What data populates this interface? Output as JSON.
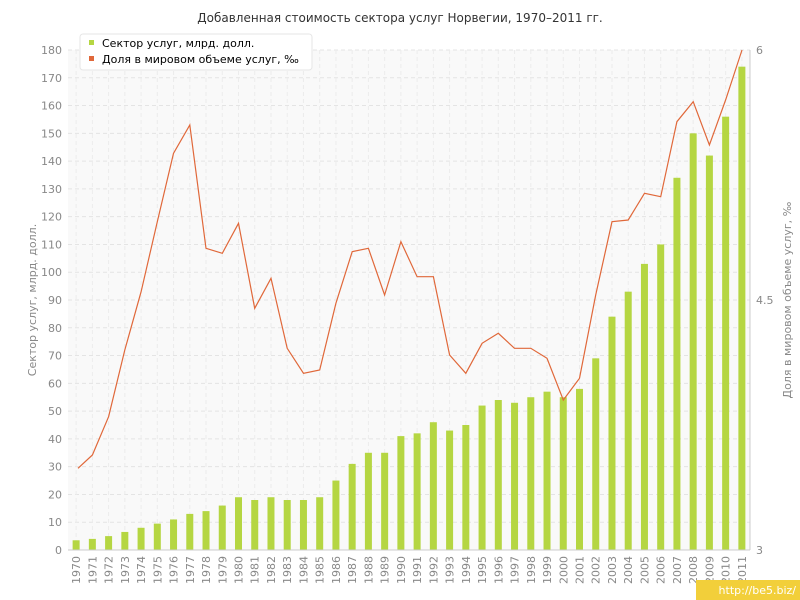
{
  "chart_data": {
    "type": "bar",
    "title": "Добавленная стоимость сектора услуг Норвегии, 1970–2011 гг.",
    "categories": [
      "1970",
      "1971",
      "1972",
      "1973",
      "1974",
      "1975",
      "1976",
      "1977",
      "1978",
      "1979",
      "1980",
      "1981",
      "1982",
      "1983",
      "1984",
      "1985",
      "1986",
      "1987",
      "1988",
      "1989",
      "1990",
      "1991",
      "1992",
      "1993",
      "1994",
      "1995",
      "1996",
      "1997",
      "1998",
      "1999",
      "2000",
      "2001",
      "2002",
      "2003",
      "2004",
      "2005",
      "2006",
      "2007",
      "2008",
      "2009",
      "2010",
      "2011"
    ],
    "series": [
      {
        "name": "Сектор услуг, млрд. долл.",
        "type": "bar",
        "axis": "left",
        "color": "#b5d642",
        "values": [
          3.5,
          4,
          5,
          6.5,
          8,
          9.5,
          11,
          13,
          14,
          16,
          19,
          18,
          19,
          18,
          18,
          19,
          25,
          31,
          35,
          35,
          41,
          42,
          46,
          43,
          45,
          52,
          54,
          53,
          55,
          57,
          55,
          58,
          69,
          84,
          93,
          103,
          110,
          134,
          150,
          142,
          156,
          174
        ]
      },
      {
        "name": "Доля в мировом объеме услуг, ‰",
        "type": "line",
        "axis": "right",
        "color": "#e0683a",
        "values": [
          3.49,
          3.57,
          3.8,
          4.2,
          4.55,
          4.97,
          5.38,
          5.55,
          4.81,
          4.78,
          4.96,
          4.45,
          4.63,
          4.21,
          4.06,
          4.08,
          4.48,
          4.79,
          4.81,
          4.53,
          4.85,
          4.64,
          4.64,
          4.17,
          4.06,
          4.24,
          4.3,
          4.21,
          4.21,
          4.15,
          3.9,
          4.03,
          4.53,
          4.97,
          4.98,
          5.14,
          5.12,
          5.57,
          5.69,
          5.43,
          5.7,
          6.0
        ]
      }
    ],
    "y_left": {
      "label": "Сектор услуг, млрд. долл.",
      "min": 0,
      "max": 180,
      "step": 10
    },
    "y_right": {
      "label": "Доля в мировом объеме услуг, ‰",
      "min": 3,
      "max": 6,
      "ticks": [
        "3",
        "4.5",
        "6"
      ]
    },
    "grid": true,
    "legend": "top-left"
  },
  "watermark": "http://be5.biz/"
}
